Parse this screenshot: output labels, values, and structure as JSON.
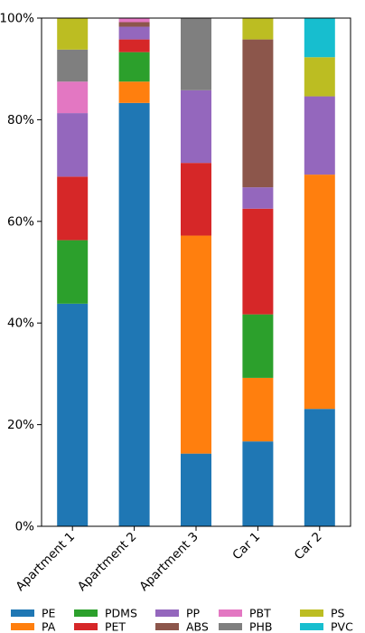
{
  "chart_data": {
    "type": "bar",
    "stacked": true,
    "y_format": "percent",
    "ylim": [
      0,
      100
    ],
    "yticks": [
      0,
      20,
      40,
      60,
      80,
      100
    ],
    "categories": [
      "Apartment 1",
      "Apartment 2",
      "Apartment 3",
      "Car 1",
      "Car 2"
    ],
    "series": [
      {
        "name": "PE",
        "color": "#1f77b4",
        "values": [
          43.8,
          83.3,
          14.3,
          16.7,
          23.1
        ]
      },
      {
        "name": "PA",
        "color": "#ff7f0e",
        "values": [
          0,
          4.2,
          42.9,
          12.5,
          46.1
        ]
      },
      {
        "name": "PDMS",
        "color": "#2ca02c",
        "values": [
          12.5,
          5.8,
          0,
          12.5,
          0
        ]
      },
      {
        "name": "PET",
        "color": "#d62728",
        "values": [
          12.5,
          2.5,
          14.3,
          20.8,
          0
        ]
      },
      {
        "name": "PP",
        "color": "#9467bd",
        "values": [
          12.5,
          2.5,
          14.3,
          4.2,
          15.4
        ]
      },
      {
        "name": "ABS",
        "color": "#8c564b",
        "values": [
          0,
          0.9,
          0,
          29.1,
          0
        ]
      },
      {
        "name": "PBT",
        "color": "#e377c2",
        "values": [
          6.2,
          0.8,
          0,
          0,
          0
        ]
      },
      {
        "name": "PHB",
        "color": "#7f7f7f",
        "values": [
          6.3,
          0,
          14.2,
          0,
          0
        ]
      },
      {
        "name": "PS",
        "color": "#bcbd22",
        "values": [
          6.2,
          0,
          0,
          4.2,
          7.7
        ]
      },
      {
        "name": "PVC",
        "color": "#17becf",
        "values": [
          0,
          0,
          0,
          0,
          7.7
        ]
      }
    ],
    "legend_placement": "bottom",
    "grid": false
  }
}
